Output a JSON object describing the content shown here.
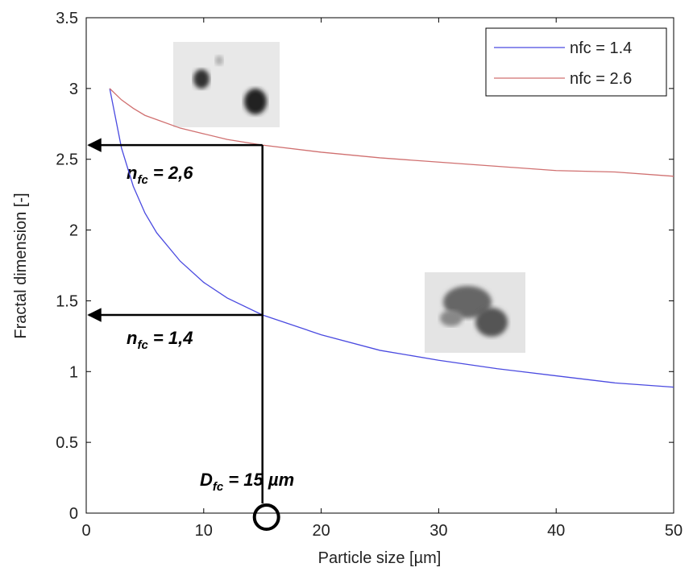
{
  "chart_data": {
    "type": "line",
    "xlabel": "Particle size [µm]",
    "ylabel": "Fractal dimension [-]",
    "x": [
      2,
      3,
      4,
      5,
      6,
      8,
      10,
      12,
      15,
      20,
      25,
      30,
      35,
      40,
      45,
      50
    ],
    "series": [
      {
        "name": "nfc = 1.4",
        "color": "#4a4ae0",
        "values": [
          3,
          2.58,
          2.31,
          2.12,
          1.98,
          1.78,
          1.63,
          1.52,
          1.4,
          1.26,
          1.15,
          1.08,
          1.02,
          0.97,
          0.92,
          0.89
        ]
      },
      {
        "name": "nfc = 2.6",
        "color": "#d07070",
        "values": [
          3,
          2.92,
          2.86,
          2.81,
          2.78,
          2.72,
          2.68,
          2.64,
          2.6,
          2.55,
          2.51,
          2.48,
          2.45,
          2.42,
          2.41,
          2.38
        ]
      }
    ],
    "xlim": [
      0,
      50
    ],
    "xticks": [
      0,
      10,
      20,
      30,
      40,
      50
    ],
    "ylim": [
      0,
      3.5
    ],
    "yticks": [
      0,
      0.5,
      1,
      1.5,
      2,
      2.5,
      3,
      3.5
    ],
    "legend": "upper right",
    "reference": {
      "x": 15,
      "y": [
        2.6,
        1.4
      ]
    },
    "annotations": [
      {
        "base": "n",
        "sub": "fc",
        "rest": " = 2,6"
      },
      {
        "base": "n",
        "sub": "fc",
        "rest": " = 1,4"
      },
      {
        "base": "D",
        "sub": "fc",
        "rest": " = 15 µm"
      }
    ]
  }
}
